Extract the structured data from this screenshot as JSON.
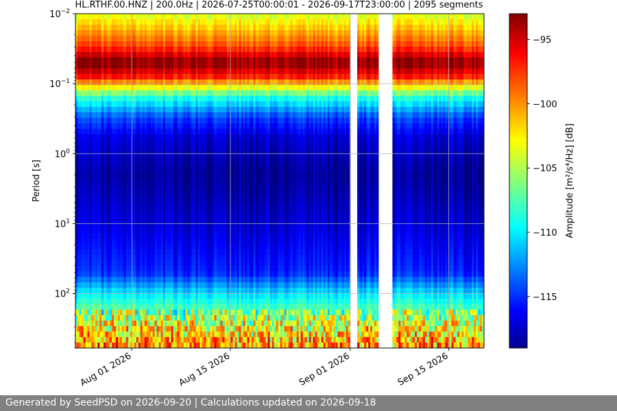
{
  "title": "HL.RTHF.00.HNZ | 200.0Hz | 2026-07-25T00:00:01 - 2026-09-17T23:00:00 | 2095 segments",
  "footer": "Generated by SeedPSD on 2026-09-20 | Calculations updated on 2026-09-18",
  "chart_data": {
    "type": "heatmap",
    "title": "HL.RTHF.00.HNZ | 200.0Hz | 2026-07-25T00:00:01 - 2026-09-17T23:00:00 | 2095 segments",
    "ylabel": "Period [s]",
    "colorbar_label": "Amplitude [m²/s⁴/Hz] [dB]",
    "colormap": "jet",
    "grid": true,
    "xlim": [
      "2026-07-24",
      "2026-09-20"
    ],
    "x_ticks": [
      {
        "date": "2026-08-01",
        "label": "Aug 01 2026"
      },
      {
        "date": "2026-08-15",
        "label": "Aug 15 2026"
      },
      {
        "date": "2026-09-01",
        "label": "Sep 01 2026"
      },
      {
        "date": "2026-09-15",
        "label": "Sep 15 2026"
      }
    ],
    "y_scale": "log",
    "y_inverted": true,
    "ylim": [
      0.01,
      600
    ],
    "y_ticks": [
      {
        "value": 0.01,
        "base": "10",
        "exp": "−2"
      },
      {
        "value": 0.1,
        "base": "10",
        "exp": "−1"
      },
      {
        "value": 1,
        "base": "10",
        "exp": "0"
      },
      {
        "value": 10,
        "base": "10",
        "exp": "1"
      },
      {
        "value": 100,
        "base": "10",
        "exp": "2"
      }
    ],
    "clim": [
      -119,
      -93
    ],
    "colorbar_ticks": [
      {
        "value": -95,
        "label": "−95"
      },
      {
        "value": -100,
        "label": "−100"
      },
      {
        "value": -105,
        "label": "−105"
      },
      {
        "value": -110,
        "label": "−110"
      },
      {
        "value": -115,
        "label": "−115"
      }
    ],
    "data_intervals": [
      [
        "2026-07-24",
        "2026-07-27"
      ],
      [
        "2026-07-28",
        "2026-08-05"
      ],
      [
        "2026-08-06",
        "2026-08-12"
      ],
      [
        "2026-08-13",
        "2026-08-31"
      ],
      [
        "2026-09-02",
        "2026-09-02"
      ],
      [
        "2026-09-03",
        "2026-09-04"
      ],
      [
        "2026-09-07",
        "2026-09-19"
      ]
    ],
    "amplitude_profile": [
      {
        "period": 0.01,
        "db": -104
      },
      {
        "period": 0.03,
        "db": -98
      },
      {
        "period": 0.05,
        "db": -93
      },
      {
        "period": 0.08,
        "db": -97
      },
      {
        "period": 0.15,
        "db": -108
      },
      {
        "period": 0.3,
        "db": -114
      },
      {
        "period": 0.6,
        "db": -117
      },
      {
        "period": 2,
        "db": -118.5
      },
      {
        "period": 10,
        "db": -117
      },
      {
        "period": 50,
        "db": -115
      },
      {
        "period": 100,
        "db": -110
      },
      {
        "period": 300,
        "db": -104
      },
      {
        "period": 600,
        "db": -101
      }
    ]
  }
}
